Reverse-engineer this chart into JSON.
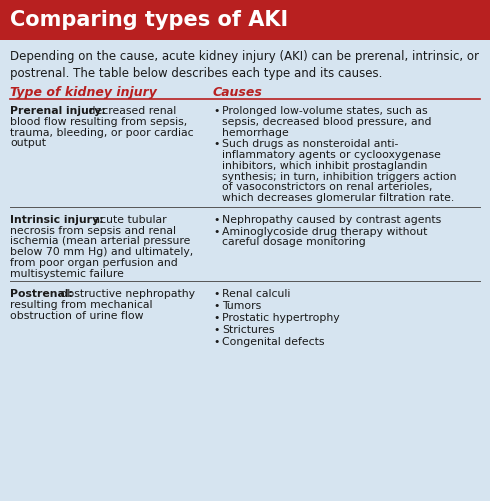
{
  "title": "Comparing types of AKI",
  "title_bg": "#b82020",
  "title_color": "#ffffff",
  "bg_color": "#d6e4f0",
  "intro_text": "Depending on the cause, acute kidney injury (AKI) can be prerenal, intrinsic, or\npostrenal. The table below describes each type and its causes.",
  "col1_header": "Type of kidney injury",
  "col2_header": "Causes",
  "header_color": "#b82020",
  "divider_color": "#b82020",
  "row_divider_color": "#555555",
  "text_color": "#1a1a1a",
  "title_fontsize": 15,
  "intro_fontsize": 8.5,
  "header_fontsize": 9,
  "body_fontsize": 7.8,
  "col_split": 0.42,
  "rows": [
    {
      "type_bold": "Prerenal injury:",
      "type_rest": " decreased renal\nblood flow resulting from sepsis,\ntrauma, bleeding, or poor cardiac\noutput",
      "causes": [
        "Prolonged low-volume states, such as\nsepsis, decreased blood pressure, and\nhemorrhage",
        "Such drugs as nonsteroidal anti-\ninflammatory agents or cyclooxygenase\ninhibitors, which inhibit prostaglandin\nsynthesis; in turn, inhibition triggers action\nof vasoconstrictors on renal arterioles,\nwhich decreases glomerular filtration rate."
      ]
    },
    {
      "type_bold": "Intrinsic injury:",
      "type_rest": " acute tubular\nnecrosis from sepsis and renal\nischemia (mean arterial pressure\nbelow 70 mm Hg) and ultimately,\nfrom poor organ perfusion and\nmultisystemic failure",
      "causes": [
        "Nephropathy caused by contrast agents",
        "Aminoglycoside drug therapy without\ncareful dosage monitoring"
      ]
    },
    {
      "type_bold": "Postrenal:",
      "type_rest": " obstructive nephropathy\nresulting from mechanical\nobstruction of urine flow",
      "causes": [
        "Renal calculi",
        "Tumors",
        "Prostatic hypertrophy",
        "Strictures",
        "Congenital defects"
      ]
    }
  ]
}
